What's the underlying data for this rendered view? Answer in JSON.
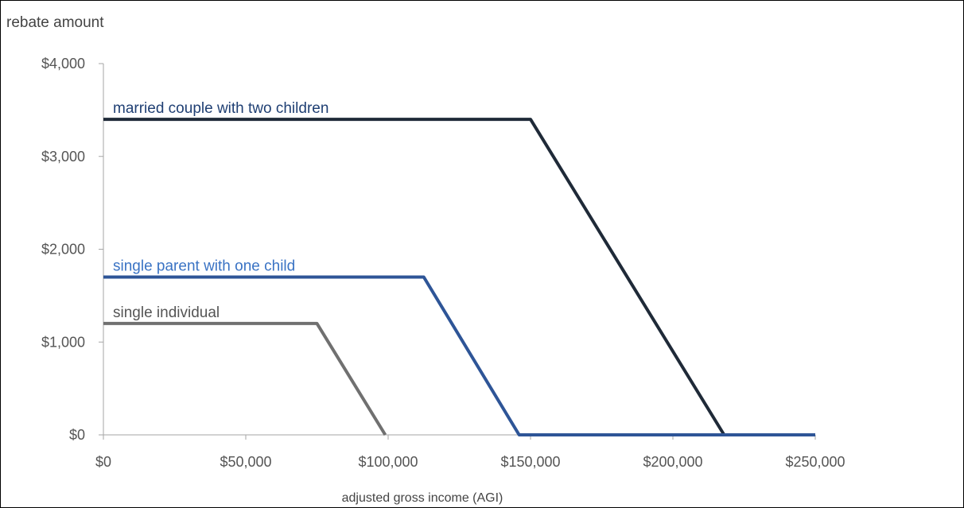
{
  "chart_data": {
    "type": "line",
    "title": "",
    "ylabel": "rebate amount",
    "xlabel": "adjusted gross income (AGI)",
    "xlim": [
      0,
      250000
    ],
    "ylim": [
      0,
      4000
    ],
    "grid": false,
    "x_ticks": [
      {
        "value": 0,
        "label": "$0"
      },
      {
        "value": 50000,
        "label": "$50,000"
      },
      {
        "value": 100000,
        "label": "$100,000"
      },
      {
        "value": 150000,
        "label": "$150,000"
      },
      {
        "value": 200000,
        "label": "$200,000"
      },
      {
        "value": 250000,
        "label": "$250,000"
      }
    ],
    "y_ticks": [
      {
        "value": 0,
        "label": "$0"
      },
      {
        "value": 1000,
        "label": "$1,000"
      },
      {
        "value": 2000,
        "label": "$2,000"
      },
      {
        "value": 3000,
        "label": "$3,000"
      },
      {
        "value": 4000,
        "label": "$4,000"
      }
    ],
    "series": [
      {
        "name": "married couple with two children",
        "color": "#1f2a38",
        "label_color": "#1f3f73",
        "points": [
          [
            0,
            3400
          ],
          [
            150000,
            3400
          ],
          [
            218000,
            0
          ],
          [
            250000,
            0
          ]
        ]
      },
      {
        "name": "single parent with one child",
        "color": "#2e5597",
        "label_color": "#3a73c4",
        "points": [
          [
            0,
            1700
          ],
          [
            112500,
            1700
          ],
          [
            146000,
            0
          ],
          [
            250000,
            0
          ]
        ]
      },
      {
        "name": "single individual",
        "color": "#707070",
        "label_color": "#555555",
        "points": [
          [
            0,
            1200
          ],
          [
            75000,
            1200
          ],
          [
            99000,
            0
          ]
        ]
      }
    ]
  }
}
